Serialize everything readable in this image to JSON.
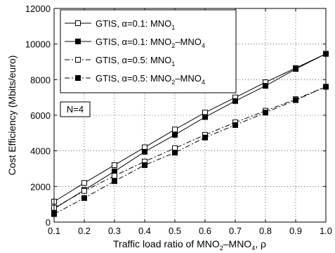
{
  "chart_data": {
    "type": "line",
    "xlabel_main": "Traffic load ratio of MNO",
    "xlabel_sub1": "2",
    "xlabel_mid": "–MNO",
    "xlabel_sub2": "4",
    "xlabel_tail": ", ρ",
    "ylabel": "Cost Efficiency (Mbits/euro)",
    "xlim": [
      0.1,
      1.0
    ],
    "ylim": [
      0,
      12000
    ],
    "xticks": [
      0.1,
      0.2,
      0.3,
      0.4,
      0.5,
      0.6,
      0.7,
      0.8,
      0.9,
      1.0
    ],
    "xtick_labels": [
      "0.1",
      "0.2",
      "0.3",
      "0.4",
      "0.5",
      "0.6",
      "0.7",
      "0.8",
      "0.9",
      "1.0"
    ],
    "yticks": [
      0,
      2000,
      4000,
      6000,
      8000,
      10000,
      12000
    ],
    "ytick_labels": [
      "0",
      "2000",
      "4000",
      "6000",
      "8000",
      "10000",
      "12000"
    ],
    "grid": true,
    "legend_position": "top-left",
    "annotation": "N=4",
    "x": [
      0.1,
      0.2,
      0.3,
      0.4,
      0.5,
      0.6,
      0.7,
      0.8,
      0.9,
      1.0
    ],
    "series": [
      {
        "name": "GTIS, α=0.1: MNO1",
        "legend_main": "GTIS, α=0.1: MNO",
        "legend_sub1": "1",
        "legend_mid": "",
        "legend_sub2": "",
        "line_style": "solid",
        "marker": "open-square",
        "values": [
          1150,
          2200,
          3200,
          4200,
          5200,
          6150,
          7000,
          7850,
          8650,
          9450
        ]
      },
      {
        "name": "GTIS, α=0.1: MNO2–MNO4",
        "legend_main": "GTIS, α=0.1: MNO",
        "legend_sub1": "2",
        "legend_mid": "–MNO",
        "legend_sub2": "4",
        "line_style": "solid",
        "marker": "filled-square",
        "values": [
          750,
          1800,
          2850,
          3950,
          4900,
          5900,
          6800,
          7650,
          8600,
          9450
        ]
      },
      {
        "name": "GTIS, α=0.5: MNO1",
        "legend_main": "GTIS, α=0.5: MNO",
        "legend_sub1": "1",
        "legend_mid": "",
        "legend_sub2": "",
        "line_style": "dashdot",
        "marker": "open-square",
        "values": [
          800,
          1750,
          2600,
          3400,
          4150,
          4900,
          5600,
          6250,
          6900,
          7600
        ]
      },
      {
        "name": "GTIS, α=0.5: MNO2–MNO4",
        "legend_main": "GTIS, α=0.5: MNO",
        "legend_sub1": "2",
        "legend_mid": "–MNO",
        "legend_sub2": "4",
        "line_style": "dashdot",
        "marker": "filled-square",
        "values": [
          450,
          1350,
          2300,
          3200,
          3900,
          4750,
          5450,
          6150,
          6850,
          7600
        ]
      }
    ]
  }
}
